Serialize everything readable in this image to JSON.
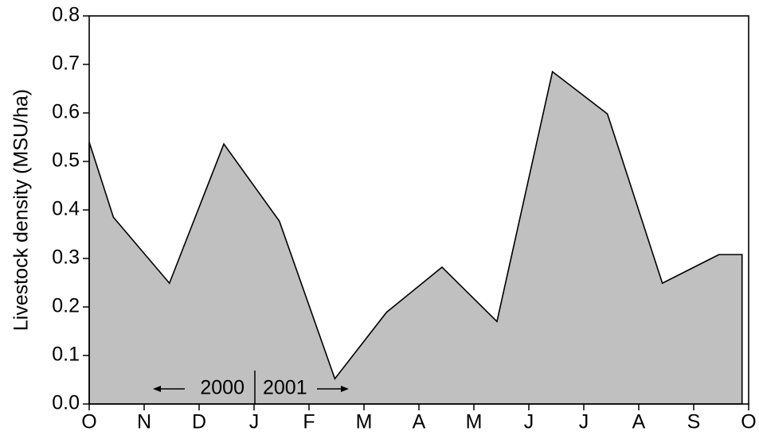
{
  "chart_data": {
    "type": "area",
    "y_label": "Livestock density (MSU/ha)",
    "x": [
      0,
      0.44,
      1.46,
      2.45,
      3.46,
      4.47,
      5.41,
      6.42,
      7.42,
      8.43,
      9.43,
      10.43,
      11.46,
      11.88
    ],
    "values": [
      0.54,
      0.385,
      0.249,
      0.536,
      0.377,
      0.052,
      0.189,
      0.282,
      0.17,
      0.685,
      0.598,
      0.249,
      0.308,
      0.308
    ],
    "color": "#c0c0c0",
    "line_color": "#000000",
    "xlim": [
      0,
      12
    ],
    "xticks": [
      {
        "value": 0,
        "label": "O"
      },
      {
        "value": 1,
        "label": "N"
      },
      {
        "value": 2,
        "label": "D"
      },
      {
        "value": 3,
        "label": "J"
      },
      {
        "value": 4,
        "label": "F"
      },
      {
        "value": 5,
        "label": "M"
      },
      {
        "value": 6,
        "label": "A"
      },
      {
        "value": 7,
        "label": "M"
      },
      {
        "value": 8,
        "label": "J"
      },
      {
        "value": 9,
        "label": "J"
      },
      {
        "value": 10,
        "label": "A"
      },
      {
        "value": 11,
        "label": "S"
      },
      {
        "value": 12,
        "label": "O"
      }
    ],
    "ylim": [
      0,
      0.8
    ],
    "yticks": [
      {
        "value": 0,
        "label": "0.0"
      },
      0.1,
      0.2,
      0.3,
      0.4,
      0.5,
      0.6,
      0.7,
      0.8
    ],
    "annotations": [
      "2000",
      "2001"
    ]
  }
}
